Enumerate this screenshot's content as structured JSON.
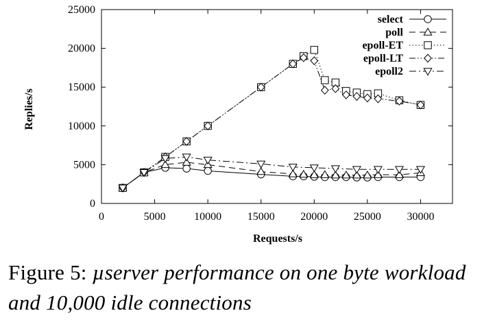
{
  "chart_data": {
    "type": "line",
    "xlabel": "Requests/s",
    "ylabel": "Replies/s",
    "xlim": [
      0,
      33000
    ],
    "ylim": [
      0,
      25000
    ],
    "x_ticks": [
      0,
      5000,
      10000,
      15000,
      20000,
      25000,
      30000
    ],
    "y_ticks": [
      0,
      5000,
      10000,
      15000,
      20000,
      25000
    ],
    "grid": false,
    "legend_position": "top-right",
    "series": [
      {
        "name": "select",
        "marker": "circle",
        "dash": "solid",
        "x": [
          2000,
          4000,
          6000,
          8000,
          10000,
          15000,
          18000,
          19000,
          20000,
          21000,
          22000,
          23000,
          24000,
          25000,
          26000,
          28000,
          30000
        ],
        "y": [
          2000,
          4000,
          4600,
          4500,
          4200,
          3750,
          3500,
          3500,
          3450,
          3400,
          3400,
          3400,
          3350,
          3350,
          3400,
          3400,
          3400
        ]
      },
      {
        "name": "poll",
        "marker": "triangle-up",
        "dash": "dashed",
        "x": [
          2000,
          4000,
          6000,
          8000,
          10000,
          15000,
          18000,
          19000,
          20000,
          21000,
          22000,
          23000,
          24000,
          25000,
          26000,
          28000,
          30000
        ],
        "y": [
          2000,
          4000,
          5000,
          5300,
          5000,
          4100,
          3800,
          3750,
          3700,
          3700,
          3650,
          3650,
          3650,
          3650,
          3700,
          3700,
          3950
        ]
      },
      {
        "name": "epoll-ET",
        "marker": "square",
        "dash": "dotted",
        "x": [
          2000,
          4000,
          6000,
          8000,
          10000,
          15000,
          18000,
          19000,
          20000,
          21000,
          22000,
          23000,
          24000,
          25000,
          26000,
          28000,
          30000
        ],
        "y": [
          2000,
          4000,
          6000,
          8000,
          10000,
          15000,
          18000,
          19000,
          19800,
          15900,
          15600,
          14500,
          14300,
          14100,
          14200,
          13300,
          12700
        ]
      },
      {
        "name": "epoll-LT",
        "marker": "diamond",
        "dash": "dash-dot-dot",
        "x": [
          2000,
          4000,
          6000,
          8000,
          10000,
          15000,
          18000,
          19000,
          20000,
          21000,
          22000,
          23000,
          24000,
          25000,
          26000,
          28000,
          30000
        ],
        "y": [
          2000,
          4000,
          6000,
          8000,
          10000,
          15000,
          18000,
          18800,
          18400,
          14600,
          14800,
          14000,
          13800,
          13600,
          13500,
          13200,
          12700
        ]
      },
      {
        "name": "epoll2",
        "marker": "triangle-down",
        "dash": "dash-dot",
        "x": [
          2000,
          4000,
          6000,
          8000,
          10000,
          15000,
          18000,
          20000,
          22000,
          24000,
          26000,
          28000,
          30000
        ],
        "y": [
          2000,
          4000,
          5800,
          6000,
          5600,
          5100,
          4700,
          4600,
          4500,
          4400,
          4400,
          4400,
          4400
        ]
      }
    ]
  },
  "caption": {
    "lead": "Figure 5:",
    "body": "µserver performance on one byte workload and 10,000 idle connections"
  }
}
